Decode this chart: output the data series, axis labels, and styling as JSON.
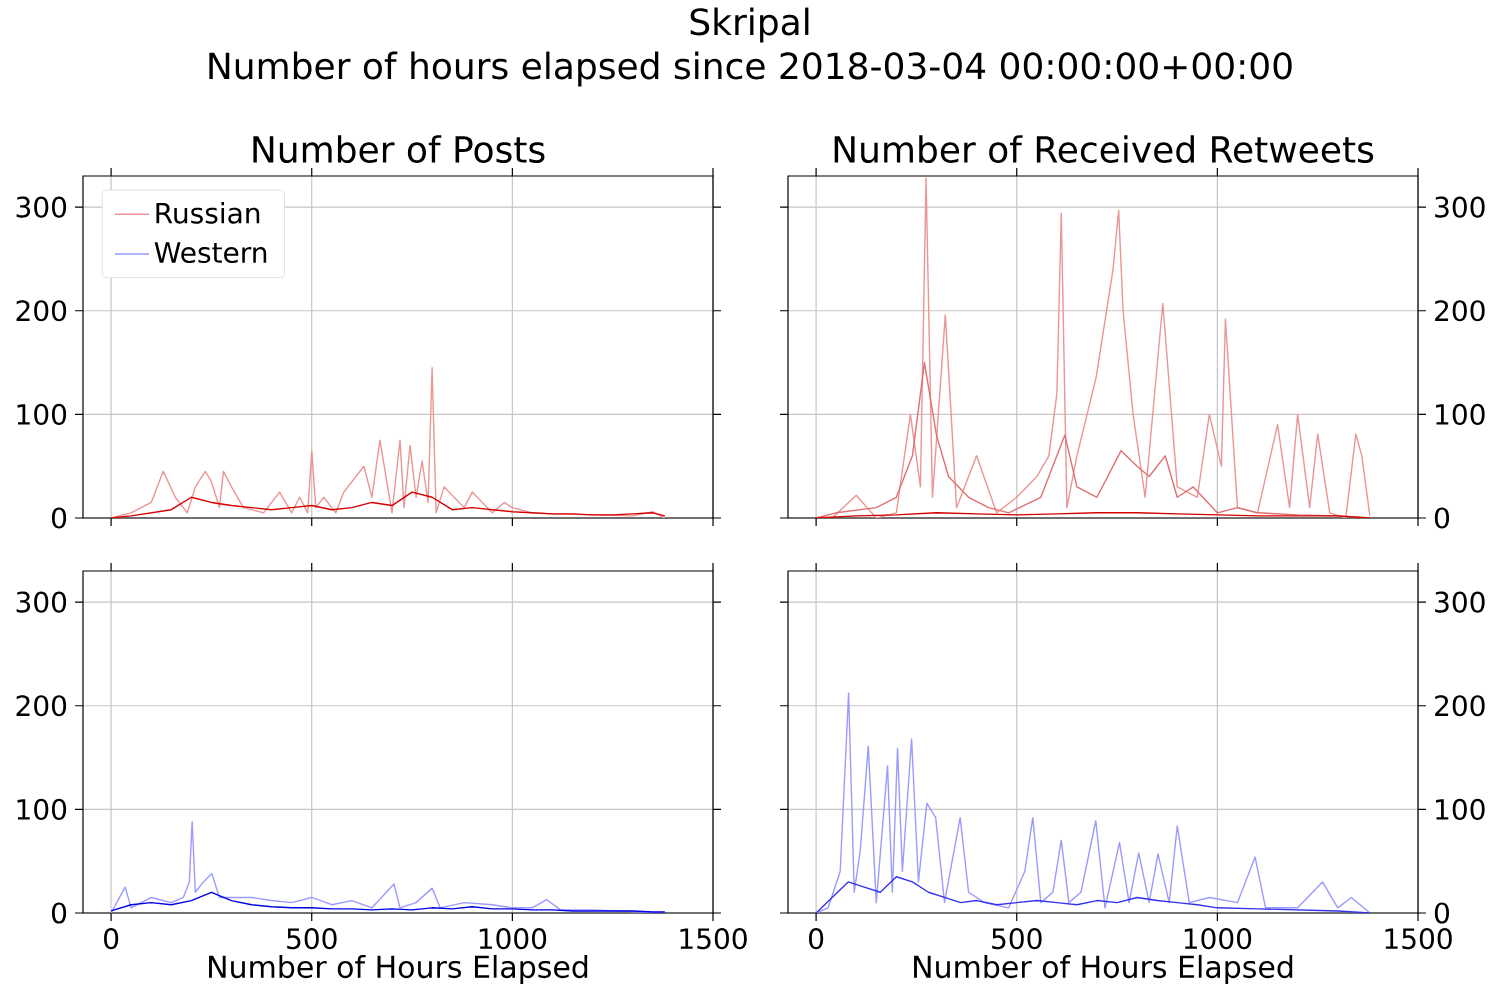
{
  "chart_data": [
    {
      "type": "line",
      "title": "Number of Posts",
      "annotations": [
        "Skripal",
        "Number of hours elapsed since 2018-03-04 00:00:00+00:00"
      ],
      "xlim": [
        -70,
        1500
      ],
      "ylim": [
        0,
        330
      ],
      "xticks": [
        0,
        500,
        1000,
        1500
      ],
      "yticks": [
        0,
        100,
        200,
        300
      ],
      "tick_labels": "y",
      "grid": true,
      "legend": "top left",
      "series": [
        {
          "name": "Russian",
          "color": "#eb9595",
          "x": [
            0,
            50,
            100,
            130,
            160,
            190,
            210,
            235,
            250,
            270,
            280,
            300,
            330,
            380,
            420,
            450,
            470,
            490,
            500,
            510,
            530,
            560,
            580,
            600,
            630,
            650,
            670,
            700,
            720,
            730,
            745,
            760,
            775,
            790,
            800,
            810,
            830,
            880,
            900,
            950,
            980,
            1000,
            1050,
            1100,
            1200,
            1300,
            1350,
            1380
          ],
          "values": [
            0,
            5,
            15,
            45,
            20,
            5,
            30,
            45,
            35,
            10,
            45,
            30,
            10,
            5,
            25,
            5,
            20,
            5,
            65,
            10,
            20,
            5,
            25,
            35,
            50,
            20,
            75,
            5,
            75,
            10,
            70,
            20,
            55,
            15,
            145,
            5,
            30,
            10,
            25,
            5,
            15,
            10,
            5,
            4,
            3,
            2,
            6,
            0
          ]
        },
        {
          "color": "#d40000",
          "x": [
            0,
            50,
            100,
            150,
            200,
            250,
            300,
            350,
            400,
            450,
            500,
            550,
            600,
            650,
            700,
            750,
            800,
            850,
            900,
            950,
            1000,
            1050,
            1100,
            1150,
            1200,
            1250,
            1300,
            1350,
            1380
          ],
          "values": [
            0,
            2,
            5,
            8,
            20,
            15,
            12,
            10,
            8,
            10,
            12,
            8,
            10,
            15,
            12,
            25,
            20,
            8,
            10,
            8,
            6,
            5,
            4,
            4,
            3,
            3,
            4,
            5,
            2
          ]
        }
      ]
    },
    {
      "type": "line",
      "title": "Number of Received Retweets",
      "xlim": [
        -70,
        1500
      ],
      "ylim": [
        0,
        330
      ],
      "xticks": [
        0,
        500,
        1000,
        1500
      ],
      "yticks": [
        0,
        100,
        200,
        300
      ],
      "tick_labels": "y",
      "grid": true,
      "series": [
        {
          "color": "#eb9595",
          "x": [
            0,
            40,
            100,
            150,
            200,
            235,
            250,
            260,
            274,
            290,
            322,
            350,
            400,
            450,
            500,
            550,
            580,
            600,
            611,
            625,
            650,
            698,
            740,
            754,
            765,
            780,
            790,
            820,
            864,
            900,
            950,
            980,
            996,
            1010,
            1020,
            1050,
            1100,
            1150,
            1180,
            1200,
            1230,
            1250,
            1280,
            1320,
            1345,
            1360,
            1380
          ],
          "values": [
            0,
            0,
            22,
            0,
            5,
            100,
            null,
            30,
            328,
            20,
            196,
            10,
            60,
            5,
            20,
            40,
            60,
            120,
            294,
            10,
            60,
            136,
            240,
            297,
            200,
            null,
            100,
            20,
            207,
            30,
            20,
            100,
            null,
            50,
            192,
            10,
            5,
            90,
            10,
            100,
            10,
            81,
            5,
            0,
            81,
            60,
            2
          ]
        },
        {
          "color": "#e07070",
          "x": [
            0,
            50,
            150,
            200,
            240,
            270,
            300,
            330,
            380,
            430,
            480,
            560,
            620,
            650,
            700,
            760,
            800,
            830,
            870,
            900,
            940,
            1000,
            1050,
            1100,
            1200,
            1300,
            1380
          ],
          "values": [
            0,
            5,
            10,
            20,
            60,
            150,
            80,
            40,
            20,
            10,
            5,
            20,
            80,
            30,
            20,
            65,
            50,
            40,
            60,
            20,
            30,
            5,
            10,
            5,
            3,
            2,
            0
          ]
        },
        {
          "color": "#d40000",
          "x": [
            0,
            100,
            200,
            300,
            400,
            500,
            600,
            700,
            800,
            900,
            1000,
            1100,
            1200,
            1300,
            1380
          ],
          "values": [
            0,
            2,
            3,
            5,
            4,
            3,
            4,
            5,
            5,
            4,
            3,
            2,
            2,
            2,
            0
          ]
        }
      ]
    },
    {
      "type": "line",
      "xlabel": "Number of Hours Elapsed",
      "xlim": [
        -70,
        1500
      ],
      "ylim": [
        0,
        330
      ],
      "xticks": [
        0,
        500,
        1000,
        1500
      ],
      "yticks": [
        0,
        100,
        200,
        300
      ],
      "grid": true,
      "series": [
        {
          "name": "Western",
          "color": "#9a9aff",
          "x": [
            0,
            35,
            50,
            100,
            150,
            180,
            195,
            202,
            210,
            230,
            251,
            270,
            300,
            350,
            400,
            450,
            500,
            550,
            600,
            650,
            705,
            720,
            760,
            800,
            820,
            880,
            950,
            1000,
            1050,
            1085,
            1120,
            1200,
            1300,
            1380
          ],
          "values": [
            0,
            25,
            5,
            15,
            10,
            15,
            30,
            88,
            20,
            30,
            38,
            15,
            15,
            15,
            12,
            10,
            15,
            8,
            12,
            5,
            28,
            5,
            10,
            24,
            5,
            10,
            8,
            5,
            5,
            13,
            3,
            3,
            null,
            0
          ]
        },
        {
          "color": "#0000e6",
          "x": [
            0,
            50,
            100,
            150,
            200,
            250,
            300,
            350,
            400,
            450,
            500,
            550,
            600,
            650,
            700,
            750,
            800,
            850,
            900,
            950,
            1000,
            1050,
            1100,
            1150,
            1200,
            1250,
            1300,
            1350,
            1380
          ],
          "values": [
            2,
            8,
            10,
            8,
            12,
            20,
            12,
            8,
            6,
            5,
            5,
            4,
            4,
            3,
            4,
            3,
            5,
            4,
            6,
            4,
            4,
            3,
            3,
            2,
            2,
            2,
            2,
            1,
            1
          ]
        }
      ]
    },
    {
      "type": "line",
      "xlabel": "Number of Hours Elapsed",
      "xlim": [
        -70,
        1500
      ],
      "ylim": [
        0,
        330
      ],
      "xticks": [
        0,
        500,
        1000,
        1500
      ],
      "yticks": [
        0,
        100,
        200,
        300
      ],
      "grid": true,
      "series": [
        {
          "color": "#9a9aff",
          "x": [
            0,
            30,
            60,
            81,
            95,
            110,
            130,
            150,
            178,
            190,
            203,
            215,
            238,
            255,
            276,
            298,
            320,
            359,
            380,
            420,
            480,
            520,
            540,
            560,
            590,
            611,
            630,
            660,
            697,
            720,
            756,
            780,
            804,
            830,
            852,
            880,
            900,
            930,
            980,
            1050,
            1094,
            1120,
            1200,
            1262,
            1300,
            1334,
            1380
          ],
          "values": [
            0,
            5,
            40,
            212,
            20,
            60,
            161,
            10,
            142,
            20,
            159,
            40,
            168,
            30,
            106,
            92,
            10,
            92,
            20,
            10,
            5,
            40,
            92,
            10,
            20,
            70,
            10,
            20,
            89,
            5,
            68,
            10,
            58,
            10,
            57,
            10,
            84,
            10,
            15,
            10,
            54,
            5,
            5,
            30,
            5,
            15,
            0
          ]
        },
        {
          "color": "#3333ee",
          "x": [
            0,
            40,
            80,
            120,
            160,
            200,
            240,
            280,
            320,
            360,
            400,
            450,
            500,
            550,
            600,
            650,
            700,
            750,
            800,
            850,
            900,
            950,
            1000,
            1100,
            1200,
            1300,
            1380
          ],
          "values": [
            0,
            15,
            30,
            25,
            20,
            35,
            30,
            20,
            15,
            10,
            12,
            8,
            10,
            12,
            10,
            8,
            12,
            10,
            15,
            12,
            10,
            8,
            5,
            4,
            3,
            2,
            0
          ]
        }
      ]
    }
  ]
}
